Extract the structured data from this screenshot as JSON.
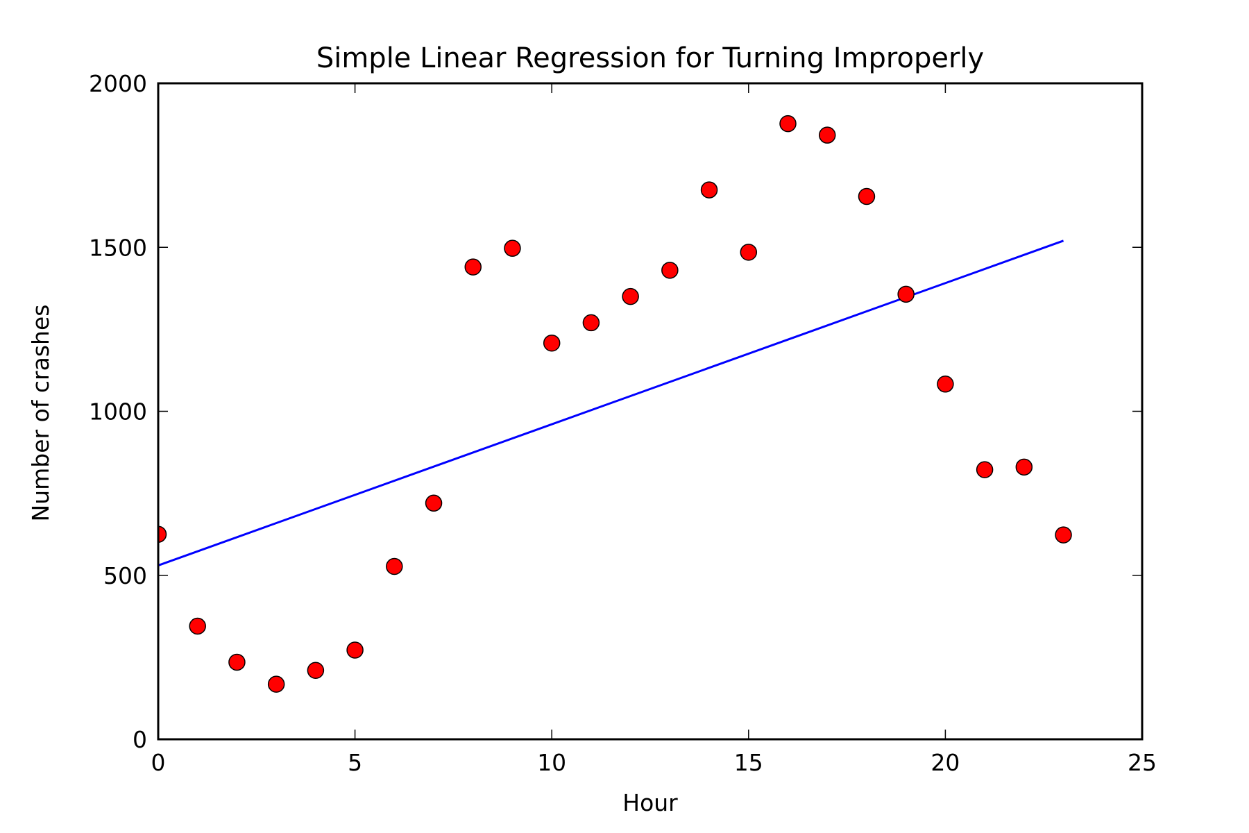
{
  "chart_data": {
    "type": "scatter",
    "title": "Simple Linear Regression for Turning Improperly",
    "xlabel": "Hour",
    "ylabel": "Number of crashes",
    "xlim": [
      0,
      25
    ],
    "ylim": [
      0,
      2000
    ],
    "xticks": [
      0,
      5,
      10,
      15,
      20,
      25
    ],
    "yticks": [
      0,
      500,
      1000,
      1500,
      2000
    ],
    "grid": false,
    "series": [
      {
        "kind": "scatter",
        "color": "#ff0000",
        "edge_color": "#000000",
        "points": [
          {
            "x": 0,
            "y": 625
          },
          {
            "x": 1,
            "y": 345
          },
          {
            "x": 2,
            "y": 235
          },
          {
            "x": 3,
            "y": 168
          },
          {
            "x": 4,
            "y": 210
          },
          {
            "x": 5,
            "y": 272
          },
          {
            "x": 6,
            "y": 527
          },
          {
            "x": 7,
            "y": 720
          },
          {
            "x": 8,
            "y": 1440
          },
          {
            "x": 9,
            "y": 1497
          },
          {
            "x": 10,
            "y": 1208
          },
          {
            "x": 11,
            "y": 1270
          },
          {
            "x": 12,
            "y": 1350
          },
          {
            "x": 13,
            "y": 1430
          },
          {
            "x": 14,
            "y": 1675
          },
          {
            "x": 15,
            "y": 1485
          },
          {
            "x": 16,
            "y": 1877
          },
          {
            "x": 17,
            "y": 1842
          },
          {
            "x": 18,
            "y": 1655
          },
          {
            "x": 19,
            "y": 1357
          },
          {
            "x": 20,
            "y": 1083
          },
          {
            "x": 21,
            "y": 822
          },
          {
            "x": 22,
            "y": 830
          },
          {
            "x": 23,
            "y": 623
          }
        ]
      },
      {
        "kind": "line",
        "color": "#0000ff",
        "points": [
          {
            "x": 0,
            "y": 530
          },
          {
            "x": 23,
            "y": 1520
          }
        ]
      }
    ]
  }
}
